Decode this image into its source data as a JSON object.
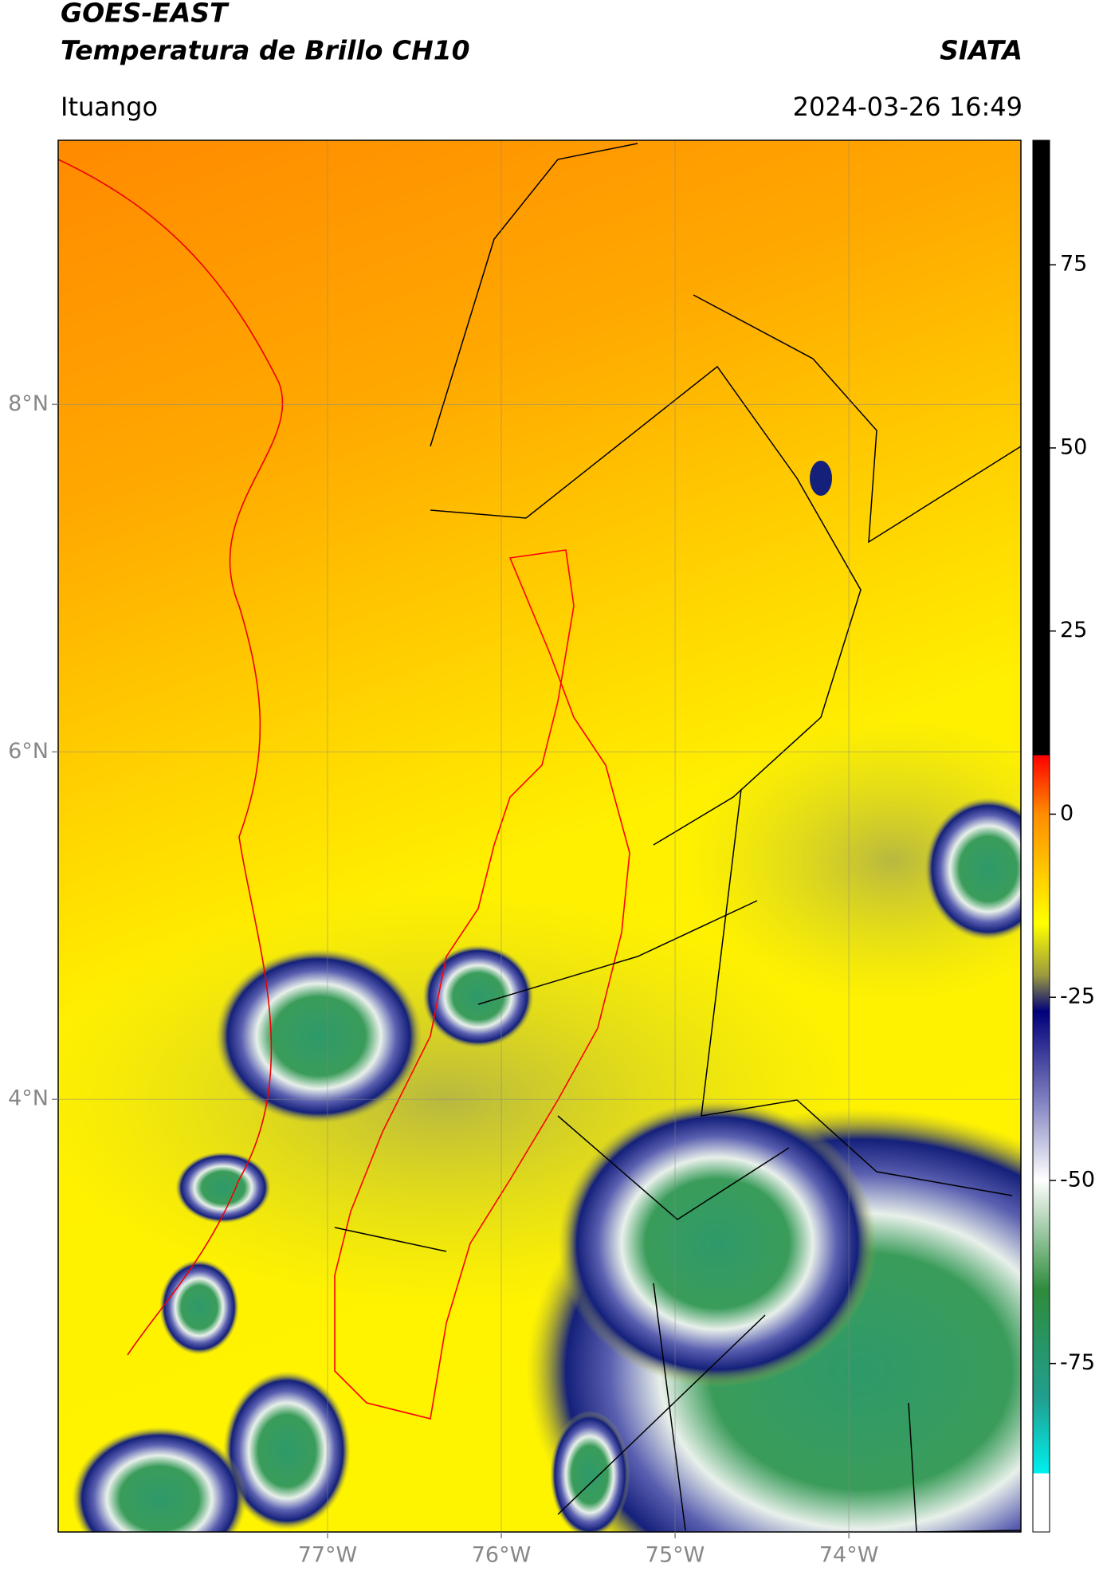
{
  "header": {
    "title": "GOES-EAST",
    "subtitle": "Temperatura de Brillo CH10",
    "brand": "SIATA",
    "location": "Ituango",
    "timestamp": "2024-03-26 16:49"
  },
  "map": {
    "xlim": [
      -78.55,
      -73.01
    ],
    "ylim": [
      1.51,
      9.52
    ],
    "xticks": [
      {
        "value": -77,
        "label": "77°W"
      },
      {
        "value": -76,
        "label": "76°W"
      },
      {
        "value": -75,
        "label": "75°W"
      },
      {
        "value": -74,
        "label": "74°W"
      }
    ],
    "yticks": [
      {
        "value": 8,
        "label": "8°N"
      },
      {
        "value": 6,
        "label": "6°N"
      },
      {
        "value": 4,
        "label": "4°N"
      }
    ],
    "grid": true
  },
  "colorbar": {
    "lim": [
      -98,
      92
    ],
    "ticks": [
      75,
      50,
      25,
      0,
      -25,
      -50,
      -75
    ]
  }
}
